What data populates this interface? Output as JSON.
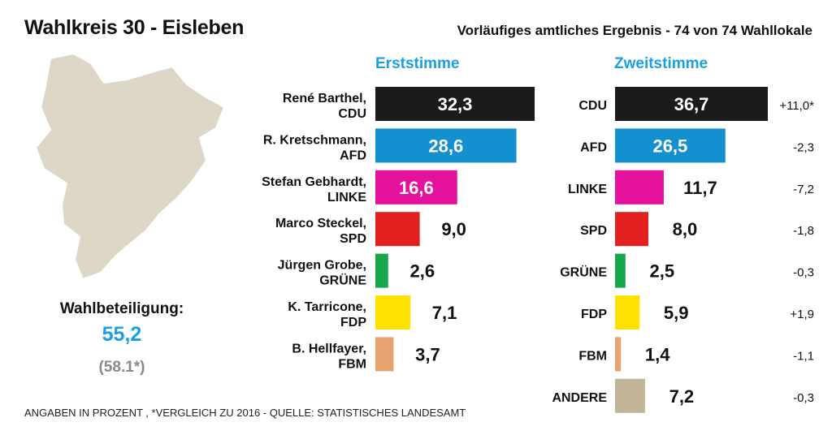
{
  "header": {
    "title": "Wahlkreis 30 - Eisleben",
    "subtitle": "Vorläufiges amtliches Ergebnis - 74 von 74 Wahllokale"
  },
  "turnout": {
    "label": "Wahlbeteiligung:",
    "value": "55,2",
    "previous": "(58.1*)"
  },
  "footnote": "ANGABEN IN PROZENT , *VERGLEICH ZU 2016 - QUELLE: STATISTISCHES LANDESAMT",
  "chart_data": [
    {
      "type": "bar",
      "title": "Erststimme",
      "orientation": "horizontal",
      "categories": [
        [
          "René Barthel,",
          "CDU"
        ],
        [
          "R. Kretschmann,",
          "AFD"
        ],
        [
          "Stefan Gebhardt,",
          "LINKE"
        ],
        [
          "Marco Steckel,",
          "SPD"
        ],
        [
          "Jürgen Grobe,",
          "GRÜNE"
        ],
        [
          "K. Tarricone,",
          "FDP"
        ],
        [
          "B. Hellfayer,",
          "FBM"
        ]
      ],
      "values": [
        32.3,
        28.6,
        16.6,
        9.0,
        2.6,
        7.1,
        3.7
      ],
      "value_labels": [
        "32,3",
        "28,6",
        "16,6",
        "9,0",
        "2,6",
        "7,1",
        "3,7"
      ],
      "colors": [
        "#1c1a1b",
        "#1490d0",
        "#e4119c",
        "#e1201f",
        "#18a64a",
        "#ffe100",
        "#e6a36f"
      ],
      "value_label_inside": [
        true,
        true,
        true,
        false,
        false,
        false,
        false
      ]
    },
    {
      "type": "bar",
      "title": "Zweitstimme",
      "orientation": "horizontal",
      "categories": [
        "CDU",
        "AFD",
        "LINKE",
        "SPD",
        "GRÜNE",
        "FDP",
        "FBM",
        "ANDERE"
      ],
      "values": [
        36.7,
        26.5,
        11.7,
        8.0,
        2.5,
        5.9,
        1.4,
        7.2
      ],
      "value_labels": [
        "36,7",
        "26,5",
        "11,7",
        "8,0",
        "2,5",
        "5,9",
        "1,4",
        "7,2"
      ],
      "changes": [
        "+11,0*",
        "-2,3",
        "-7,2",
        "-1,8",
        "-0,3",
        "+1,9",
        "-1,1",
        "-0,3"
      ],
      "colors": [
        "#1c1a1b",
        "#1490d0",
        "#e4119c",
        "#e1201f",
        "#18a64a",
        "#ffe100",
        "#e6a36f",
        "#c2b496"
      ],
      "value_label_inside": [
        true,
        true,
        false,
        false,
        false,
        false,
        false,
        false
      ]
    }
  ],
  "colors": {
    "accent": "#1aa0e0",
    "map_fill": "#ddd7c8",
    "map_stroke": "#ffffff"
  }
}
